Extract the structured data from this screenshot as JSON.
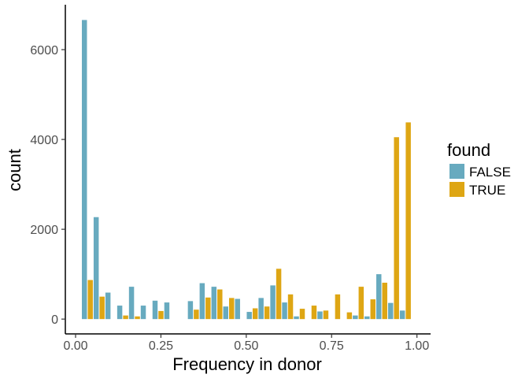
{
  "chart_data": {
    "type": "bar",
    "xlabel": "Frequency in donor",
    "ylabel": "count",
    "xlim": [
      -0.03,
      1.04
    ],
    "ylim": [
      -330,
      7000
    ],
    "x_ticks": [
      0.0,
      0.25,
      0.5,
      0.75,
      1.0
    ],
    "x_tick_labels": [
      "0.00",
      "0.25",
      "0.50",
      "0.75",
      "1.00"
    ],
    "y_ticks": [
      0,
      2000,
      4000,
      6000
    ],
    "y_tick_labels": [
      "0",
      "2000",
      "4000",
      "6000"
    ],
    "grid": false,
    "legend": {
      "title": "found",
      "placement": "right"
    },
    "bin_width": 0.0345,
    "x": [
      0.0345,
      0.069,
      0.1035,
      0.138,
      0.1725,
      0.207,
      0.2415,
      0.276,
      0.3105,
      0.345,
      0.3795,
      0.414,
      0.4485,
      0.483,
      0.5175,
      0.552,
      0.5865,
      0.621,
      0.6555,
      0.69,
      0.7245,
      0.759,
      0.7935,
      0.828,
      0.8625,
      0.897,
      0.9315,
      0.966,
      1.0005
    ],
    "series": [
      {
        "name": "FALSE",
        "color": "#67aabf",
        "values": [
          6660,
          2270,
          590,
          300,
          720,
          300,
          410,
          370,
          0,
          400,
          800,
          720,
          280,
          450,
          160,
          470,
          750,
          370,
          60,
          0,
          170,
          0,
          0,
          80,
          60,
          1000,
          360,
          190,
          0
        ]
      },
      {
        "name": "TRUE",
        "color": "#dea614",
        "values": [
          870,
          500,
          0,
          80,
          60,
          0,
          180,
          0,
          0,
          210,
          480,
          660,
          470,
          0,
          240,
          280,
          1120,
          550,
          230,
          300,
          190,
          550,
          150,
          720,
          440,
          810,
          4050,
          4380,
          0
        ]
      }
    ]
  }
}
